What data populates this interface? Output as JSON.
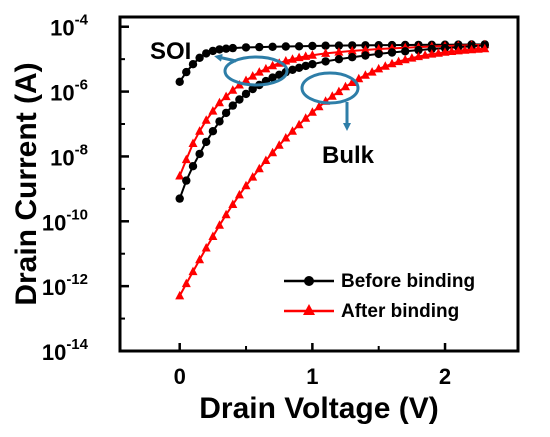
{
  "chart_data": {
    "type": "line",
    "xlabel": "Drain Voltage (V)",
    "ylabel": "Drain Current (A)",
    "xlim": [
      -0.45,
      2.55
    ],
    "ylim": [
      -14,
      -3.7
    ],
    "y_scale": "log",
    "x_ticks": [
      "0",
      "1",
      "2"
    ],
    "x_tick_values": [
      0,
      1,
      2
    ],
    "y_ticks": [
      {
        "exp": -4,
        "base": "10",
        "sup": "-4"
      },
      {
        "exp": -6,
        "base": "10",
        "sup": "-6"
      },
      {
        "exp": -8,
        "base": "10",
        "sup": "-8"
      },
      {
        "exp": -10,
        "base": "10",
        "sup": "-10"
      },
      {
        "exp": -12,
        "base": "10",
        "sup": "-12"
      },
      {
        "exp": -14,
        "base": "10",
        "sup": "-14"
      }
    ],
    "legend": {
      "position": "bottom-right",
      "entries": [
        {
          "label": "Before binding",
          "color": "#000000",
          "marker": "circle"
        },
        {
          "label": "After binding",
          "color": "#ff0000",
          "marker": "triangle"
        }
      ]
    },
    "annotations": [
      {
        "label": "SOI"
      },
      {
        "label": "Bulk"
      }
    ],
    "annotation_color": "#2e7ea8",
    "series": [
      {
        "group": "SOI",
        "legend_ref": "Before binding",
        "color": "#000000",
        "marker": "circle",
        "x": [
          0,
          0.05,
          0.1,
          0.15,
          0.2,
          0.25,
          0.3,
          0.35,
          0.4,
          0.5,
          0.6,
          0.7,
          0.8,
          0.9,
          1.0,
          1.1,
          1.2,
          1.3,
          1.4,
          1.5,
          1.6,
          1.7,
          1.8,
          1.9,
          2.0,
          2.1,
          2.2,
          2.3
        ],
        "y": [
          2e-06,
          4e-06,
          7e-06,
          1.1e-05,
          1.5e-05,
          1.8e-05,
          2e-05,
          2.1e-05,
          2.2e-05,
          2.3e-05,
          2.35e-05,
          2.4e-05,
          2.45e-05,
          2.5e-05,
          2.55e-05,
          2.6e-05,
          2.62e-05,
          2.65e-05,
          2.67e-05,
          2.7e-05,
          2.72e-05,
          2.74e-05,
          2.76e-05,
          2.78e-05,
          2.8e-05,
          2.82e-05,
          2.84e-05,
          2.86e-05
        ]
      },
      {
        "group": "SOI",
        "legend_ref": "After binding",
        "color": "#ff0000",
        "marker": "triangle",
        "x": [
          0,
          0.05,
          0.1,
          0.15,
          0.2,
          0.25,
          0.3,
          0.35,
          0.4,
          0.45,
          0.5,
          0.55,
          0.6,
          0.65,
          0.7,
          0.75,
          0.8,
          0.85,
          0.9,
          0.95,
          1.0,
          1.1,
          1.2,
          1.3,
          1.4,
          1.5,
          1.6,
          1.7,
          1.8,
          1.9,
          2.0,
          2.1,
          2.2,
          2.3
        ],
        "y": [
          2.5e-09,
          8e-09,
          2.5e-08,
          6e-08,
          1.3e-07,
          2.5e-07,
          4.5e-07,
          7e-07,
          1.1e-06,
          1.6e-06,
          2.2e-06,
          3e-06,
          4e-06,
          5e-06,
          6.3e-06,
          7.5e-06,
          8.8e-06,
          1e-05,
          1.12e-05,
          1.22e-05,
          1.32e-05,
          1.5e-05,
          1.65e-05,
          1.8e-05,
          1.92e-05,
          2.05e-05,
          2.15e-05,
          2.25e-05,
          2.35e-05,
          2.45e-05,
          2.55e-05,
          2.62e-05,
          2.7e-05,
          2.78e-05
        ]
      },
      {
        "group": "Bulk",
        "legend_ref": "Before binding",
        "color": "#000000",
        "marker": "circle",
        "x": [
          0,
          0.05,
          0.1,
          0.15,
          0.2,
          0.25,
          0.3,
          0.35,
          0.4,
          0.45,
          0.5,
          0.55,
          0.6,
          0.65,
          0.7,
          0.75,
          0.8,
          0.85,
          0.9,
          0.95,
          1.0,
          1.1,
          1.2,
          1.3,
          1.4,
          1.5,
          1.6,
          1.7,
          1.8,
          1.9,
          2.0,
          2.1,
          2.2,
          2.3
        ],
        "y": [
          5e-10,
          1.8e-09,
          5e-09,
          1.2e-08,
          2.8e-08,
          6e-08,
          1.2e-07,
          2.2e-07,
          3.7e-07,
          5.7e-07,
          8.5e-07,
          1.2e-06,
          1.6e-06,
          2.1e-06,
          2.7e-06,
          3.3e-06,
          4e-06,
          4.7e-06,
          5.4e-06,
          6.2e-06,
          7e-06,
          8.5e-06,
          1e-05,
          1.15e-05,
          1.3e-05,
          1.45e-05,
          1.6e-05,
          1.75e-05,
          1.9e-05,
          2.05e-05,
          2.2e-05,
          2.35e-05,
          2.5e-05,
          2.65e-05
        ]
      },
      {
        "group": "Bulk",
        "legend_ref": "After binding",
        "color": "#ff0000",
        "marker": "triangle",
        "x": [
          0,
          0.05,
          0.1,
          0.15,
          0.2,
          0.25,
          0.3,
          0.35,
          0.4,
          0.45,
          0.5,
          0.55,
          0.6,
          0.65,
          0.7,
          0.75,
          0.8,
          0.85,
          0.9,
          0.95,
          1.0,
          1.05,
          1.1,
          1.15,
          1.2,
          1.25,
          1.3,
          1.35,
          1.4,
          1.45,
          1.5,
          1.55,
          1.6,
          1.65,
          1.7,
          1.75,
          1.8,
          1.85,
          1.9,
          1.95,
          2.0,
          2.05,
          2.1,
          2.15,
          2.2,
          2.25,
          2.3
        ],
        "y": [
          5e-13,
          1.2e-12,
          2.8e-12,
          6.5e-12,
          1.5e-11,
          3.4e-11,
          7.5e-11,
          1.6e-10,
          3.3e-10,
          6.5e-10,
          1.25e-09,
          2.3e-09,
          4.2e-09,
          7.5e-09,
          1.3e-08,
          2.2e-08,
          3.7e-08,
          6e-08,
          9.5e-08,
          1.5e-07,
          2.3e-07,
          3.4e-07,
          5e-07,
          7.2e-07,
          1e-06,
          1.4e-06,
          1.9e-06,
          2.5e-06,
          3.2e-06,
          4e-06,
          5e-06,
          6e-06,
          7.2e-06,
          8.4e-06,
          9.6e-06,
          1.08e-05,
          1.2e-05,
          1.32e-05,
          1.43e-05,
          1.53e-05,
          1.63e-05,
          1.72e-05,
          1.8e-05,
          1.88e-05,
          1.95e-05,
          2.02e-05,
          2.08e-05
        ]
      }
    ]
  }
}
